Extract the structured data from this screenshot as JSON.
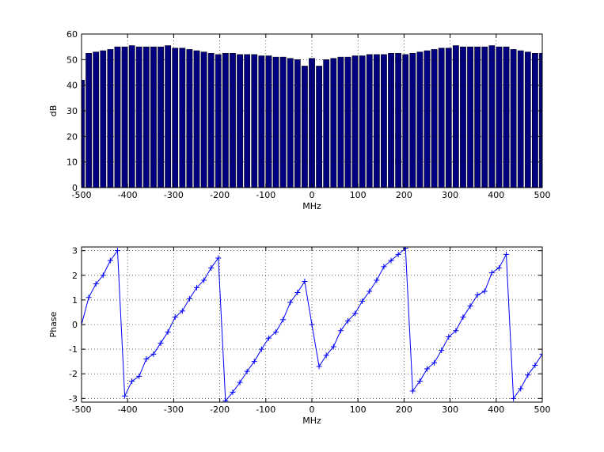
{
  "chart_data": [
    {
      "type": "bar",
      "xlabel": "MHz",
      "ylabel": "dB",
      "color": "#000080",
      "grid": true,
      "x": [
        -500,
        -484.375,
        -468.75,
        -453.125,
        -437.5,
        -421.875,
        -406.25,
        -390.625,
        -375,
        -359.375,
        -343.75,
        -328.125,
        -312.5,
        -296.875,
        -281.25,
        -265.625,
        -250,
        -234.375,
        -218.75,
        -203.125,
        -187.5,
        -171.875,
        -156.25,
        -140.625,
        -125,
        -109.375,
        -93.75,
        -78.125,
        -62.5,
        -46.875,
        -31.25,
        -15.625,
        0,
        15.625,
        31.25,
        46.875,
        62.5,
        78.125,
        93.75,
        109.375,
        125,
        140.625,
        156.25,
        171.875,
        187.5,
        203.125,
        218.75,
        234.375,
        250,
        265.625,
        281.25,
        296.875,
        312.5,
        328.125,
        343.75,
        359.375,
        375,
        390.625,
        406.25,
        421.875,
        437.5,
        453.125,
        468.75,
        484.375,
        500
      ],
      "values": [
        42,
        52.5,
        53,
        53.5,
        54,
        55,
        55,
        55.5,
        55,
        55,
        55,
        55,
        55.5,
        54.5,
        54.5,
        54,
        53.5,
        53,
        52.5,
        52,
        52.5,
        52.5,
        52,
        52,
        52,
        51.5,
        51.5,
        51,
        51,
        50.5,
        50,
        47.5,
        50.5,
        47.5,
        50,
        50.5,
        51,
        51,
        51.5,
        51.5,
        52,
        52,
        52,
        52.5,
        52.5,
        52,
        52.5,
        53,
        53.5,
        54,
        54.5,
        54.5,
        55.5,
        55,
        55,
        55,
        55,
        55.5,
        55,
        55,
        54,
        53.5,
        53,
        52.5,
        52.5
      ],
      "xlim": [
        -500,
        500
      ],
      "xticks": [
        -500,
        -400,
        -300,
        -200,
        -100,
        0,
        100,
        200,
        300,
        400,
        500
      ],
      "ylim": [
        0,
        60
      ],
      "yticks": [
        0,
        10,
        20,
        30,
        40,
        50,
        60
      ]
    },
    {
      "type": "line",
      "xlabel": "MHz",
      "ylabel": "Phase",
      "color": "#0000ff",
      "grid": true,
      "x": [
        -500,
        -484.375,
        -468.75,
        -453.125,
        -437.5,
        -421.875,
        -406.25,
        -390.625,
        -375,
        -359.375,
        -343.75,
        -328.125,
        -312.5,
        -296.875,
        -281.25,
        -265.625,
        -250,
        -234.375,
        -218.75,
        -203.125,
        -187.5,
        -171.875,
        -156.25,
        -140.625,
        -125,
        -109.375,
        -93.75,
        -78.125,
        -62.5,
        -46.875,
        -31.25,
        -15.625,
        0,
        15.625,
        31.25,
        46.875,
        62.5,
        78.125,
        93.75,
        109.375,
        125,
        140.625,
        156.25,
        171.875,
        187.5,
        203.125,
        218.75,
        234.375,
        250,
        265.625,
        281.25,
        296.875,
        312.5,
        328.125,
        343.75,
        359.375,
        375,
        390.625,
        406.25,
        421.875,
        437.5,
        453.125,
        468.75,
        484.375,
        500
      ],
      "values": [
        0,
        1.1,
        1.65,
        2.0,
        2.6,
        3.0,
        -2.9,
        -2.3,
        -2.1,
        -1.4,
        -1.2,
        -0.75,
        -0.3,
        0.3,
        0.55,
        1.05,
        1.5,
        1.8,
        2.3,
        2.7,
        -3.1,
        -2.75,
        -2.35,
        -1.9,
        -1.5,
        -1.0,
        -0.55,
        -0.3,
        0.2,
        0.9,
        1.3,
        1.75,
        0,
        -1.7,
        -1.25,
        -0.9,
        -0.25,
        0.15,
        0.45,
        0.95,
        1.35,
        1.8,
        2.35,
        2.6,
        2.85,
        3.1,
        -2.7,
        -2.3,
        -1.8,
        -1.55,
        -1.05,
        -0.5,
        -0.25,
        0.3,
        0.75,
        1.2,
        1.35,
        2.1,
        2.3,
        2.85,
        -3.0,
        -2.6,
        -2.05,
        -1.65,
        -1.2
      ],
      "xlim": [
        -500,
        500
      ],
      "xticks": [
        -500,
        -400,
        -300,
        -200,
        -100,
        0,
        100,
        200,
        300,
        400,
        500
      ],
      "ylim": [
        -3.15,
        3.15
      ],
      "yticks": [
        -3,
        -2,
        -1,
        0,
        1,
        2,
        3
      ]
    }
  ]
}
